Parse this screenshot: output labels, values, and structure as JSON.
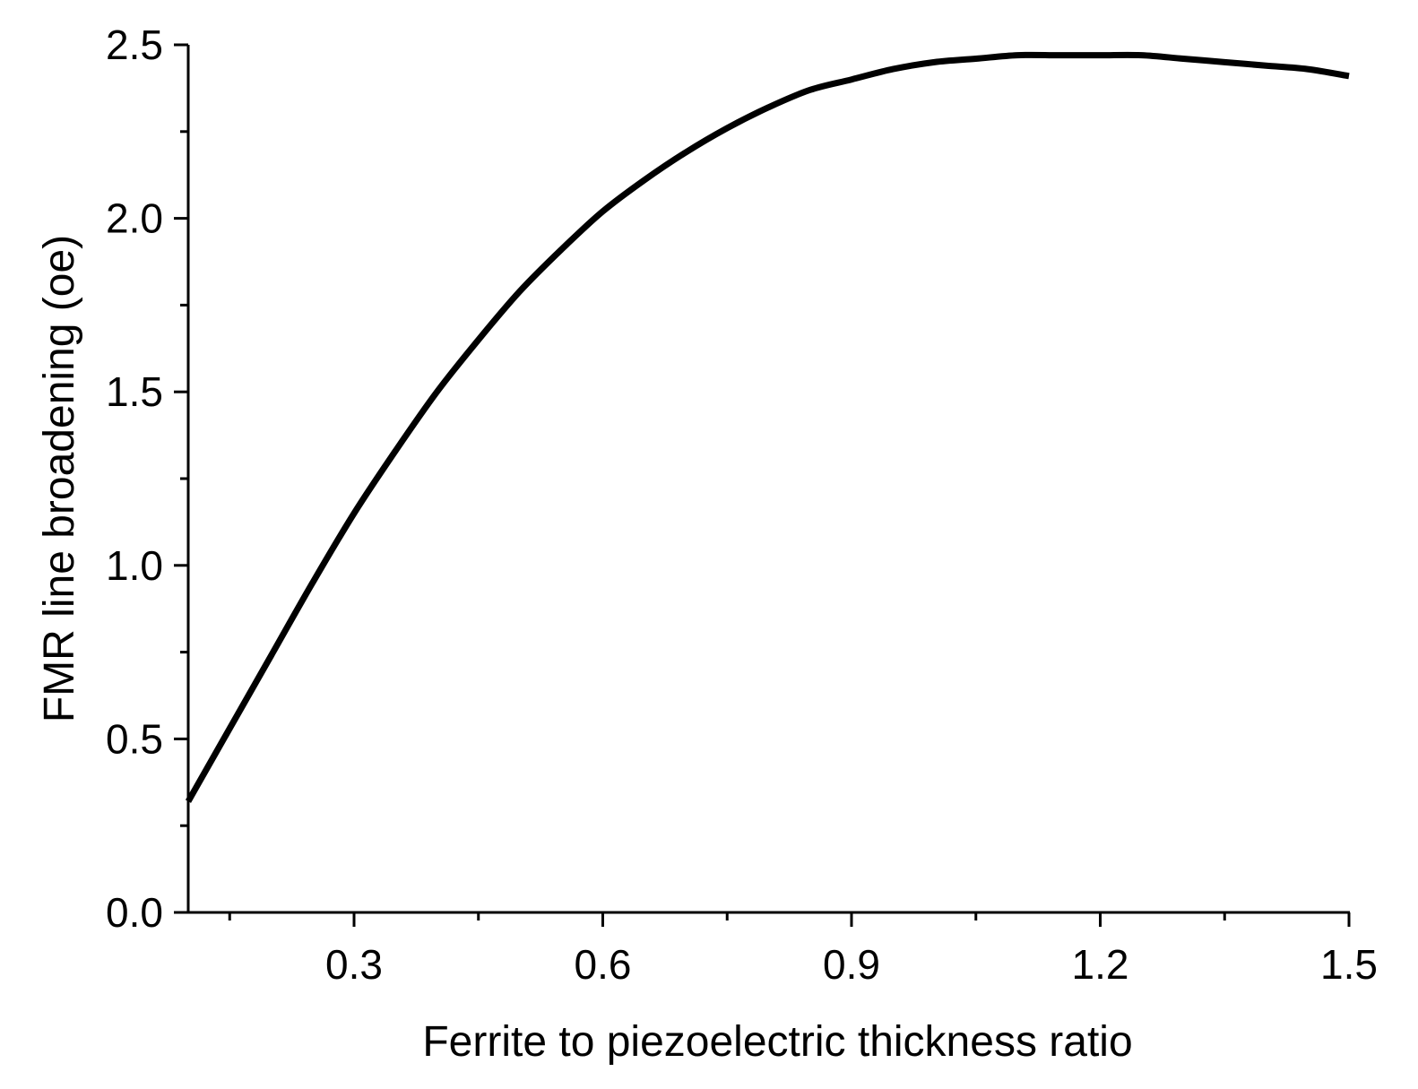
{
  "chart_data": {
    "type": "line",
    "title": "",
    "xlabel": "Ferrite to piezoelectric thickness ratio",
    "ylabel": "FMR line broadening (oe)",
    "xlim": [
      0.1,
      1.5
    ],
    "ylim": [
      0.0,
      2.5
    ],
    "x_ticks": [
      0.3,
      0.6,
      0.9,
      1.2,
      1.5
    ],
    "x_tick_labels": [
      "0.3",
      "0.6",
      "0.9",
      "1.2",
      "1.5"
    ],
    "x_minor_ticks": [
      0.15,
      0.45,
      0.75,
      1.05,
      1.35
    ],
    "y_ticks": [
      0.0,
      0.5,
      1.0,
      1.5,
      2.0,
      2.5
    ],
    "y_tick_labels": [
      "0.0",
      "0.5",
      "1.0",
      "1.5",
      "2.0",
      "2.5"
    ],
    "y_minor_ticks": [
      0.25,
      0.75,
      1.25,
      1.75,
      2.25
    ],
    "grid": false,
    "legend": "none",
    "series": [
      {
        "color": "#000000",
        "x": [
          0.1,
          0.15,
          0.2,
          0.25,
          0.3,
          0.35,
          0.4,
          0.45,
          0.5,
          0.55,
          0.6,
          0.65,
          0.7,
          0.75,
          0.8,
          0.85,
          0.9,
          0.95,
          1.0,
          1.05,
          1.1,
          1.15,
          1.2,
          1.25,
          1.3,
          1.35,
          1.4,
          1.45,
          1.5
        ],
        "y": [
          0.32,
          0.53,
          0.74,
          0.95,
          1.15,
          1.33,
          1.5,
          1.65,
          1.79,
          1.91,
          2.02,
          2.11,
          2.19,
          2.26,
          2.32,
          2.37,
          2.4,
          2.43,
          2.45,
          2.46,
          2.47,
          2.47,
          2.47,
          2.47,
          2.46,
          2.45,
          2.44,
          2.43,
          2.41
        ]
      }
    ]
  }
}
